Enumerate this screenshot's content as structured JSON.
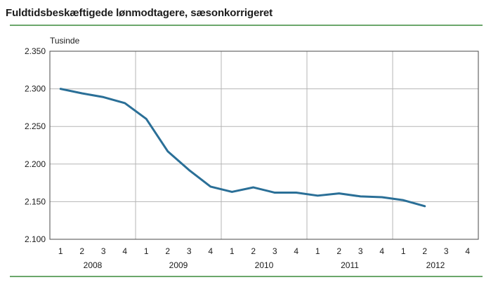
{
  "title": "Fuldtidsbeskæftigede lønmodtagere, sæsonkorrigeret",
  "colors": {
    "rule": "#3a8a3a",
    "line": "#2a6f97",
    "grid": "#b5b5b5",
    "frame": "#4a4a4a"
  },
  "chart_data": {
    "type": "line",
    "title": "Fuldtidsbeskæftigede lønmodtagere, sæsonkorrigeret",
    "ylabel": "Tusinde",
    "ylim": [
      2100,
      2350
    ],
    "yticks": [
      2100,
      2150,
      2200,
      2250,
      2300,
      2350
    ],
    "ytick_labels": [
      "2.100",
      "2.150",
      "2.200",
      "2.250",
      "2.300",
      "2.350"
    ],
    "quarter_labels": [
      "1",
      "2",
      "3",
      "4",
      "1",
      "2",
      "3",
      "4",
      "1",
      "2",
      "3",
      "4",
      "1",
      "2",
      "3",
      "4",
      "1",
      "2",
      "3",
      "4"
    ],
    "years": [
      "2008",
      "2009",
      "2010",
      "2011",
      "2012"
    ],
    "grid": "vertical lines between years, horizontal lines at each y tick",
    "series": [
      {
        "values": [
          2300,
          2294,
          2289,
          2281,
          2260,
          2217,
          2192,
          2170,
          2163,
          2169,
          2162,
          2162,
          2158,
          2161,
          2157,
          2156,
          2152,
          2144
        ]
      }
    ]
  }
}
